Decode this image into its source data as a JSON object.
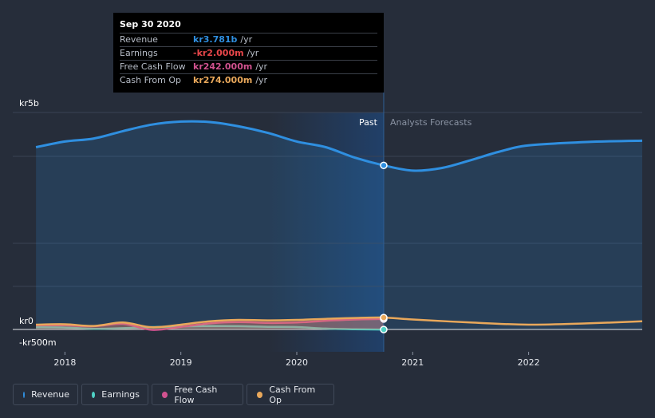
{
  "chart_data": {
    "type": "area",
    "currency": "kr",
    "y_ticks": [
      {
        "value": 5000,
        "label": "kr5b"
      },
      {
        "value": 0,
        "label": "kr0"
      },
      {
        "value": -500,
        "label": "-kr500m"
      }
    ],
    "x_ticks": [
      {
        "value": 2018,
        "label": "2018"
      },
      {
        "value": 2019,
        "label": "2019"
      },
      {
        "value": 2020,
        "label": "2020"
      },
      {
        "value": 2021,
        "label": "2021"
      },
      {
        "value": 2022,
        "label": "2022"
      }
    ],
    "ylim": [
      -500,
      5000
    ],
    "xlim": [
      2017.55,
      2022.98
    ],
    "past_end": 2020.75,
    "past_label": "Past",
    "forecast_label": "Analysts Forecasts",
    "series": [
      {
        "name": "Revenue",
        "color": "#2f8fe0",
        "values": [
          [
            2017.75,
            4200
          ],
          [
            2018.0,
            4330
          ],
          [
            2018.25,
            4400
          ],
          [
            2018.5,
            4570
          ],
          [
            2018.75,
            4720
          ],
          [
            2019.0,
            4790
          ],
          [
            2019.25,
            4780
          ],
          [
            2019.5,
            4680
          ],
          [
            2019.75,
            4530
          ],
          [
            2020.0,
            4330
          ],
          [
            2020.25,
            4200
          ],
          [
            2020.5,
            3960
          ],
          [
            2020.75,
            3781
          ],
          [
            2021.0,
            3660
          ],
          [
            2021.25,
            3720
          ],
          [
            2021.5,
            3900
          ],
          [
            2021.75,
            4100
          ],
          [
            2022.0,
            4240
          ],
          [
            2022.5,
            4320
          ],
          [
            2022.98,
            4350
          ]
        ]
      },
      {
        "name": "Earnings",
        "color": "#4fd1c5",
        "values": [
          [
            2017.75,
            50
          ],
          [
            2018.0,
            45
          ],
          [
            2018.25,
            15
          ],
          [
            2018.5,
            30
          ],
          [
            2018.75,
            55
          ],
          [
            2019.0,
            70
          ],
          [
            2019.25,
            80
          ],
          [
            2019.5,
            75
          ],
          [
            2019.75,
            60
          ],
          [
            2020.0,
            55
          ],
          [
            2020.25,
            20
          ],
          [
            2020.5,
            5
          ],
          [
            2020.75,
            -2
          ]
        ]
      },
      {
        "name": "Free Cash Flow",
        "color": "#d1528f",
        "values": [
          [
            2017.75,
            100
          ],
          [
            2018.0,
            95
          ],
          [
            2018.25,
            75
          ],
          [
            2018.5,
            130
          ],
          [
            2018.75,
            -10
          ],
          [
            2019.0,
            60
          ],
          [
            2019.25,
            140
          ],
          [
            2019.5,
            170
          ],
          [
            2019.75,
            150
          ],
          [
            2020.0,
            160
          ],
          [
            2020.25,
            200
          ],
          [
            2020.5,
            230
          ],
          [
            2020.75,
            242
          ]
        ]
      },
      {
        "name": "Cash From Op",
        "color": "#e9a85b",
        "values": [
          [
            2017.75,
            110
          ],
          [
            2018.0,
            120
          ],
          [
            2018.25,
            80
          ],
          [
            2018.5,
            160
          ],
          [
            2018.75,
            50
          ],
          [
            2019.0,
            110
          ],
          [
            2019.25,
            190
          ],
          [
            2019.5,
            220
          ],
          [
            2019.75,
            210
          ],
          [
            2020.0,
            220
          ],
          [
            2020.25,
            245
          ],
          [
            2020.5,
            265
          ],
          [
            2020.75,
            274
          ],
          [
            2021.0,
            230
          ],
          [
            2021.5,
            160
          ],
          [
            2022.0,
            110
          ],
          [
            2022.5,
            140
          ],
          [
            2022.98,
            190
          ]
        ]
      }
    ]
  },
  "tooltip": {
    "date": "Sep 30 2020",
    "rows": [
      {
        "name": "Revenue",
        "value": "kr3.781b",
        "unit": "/yr",
        "color": "#2f8fe0"
      },
      {
        "name": "Earnings",
        "value": "-kr2.000m",
        "unit": "/yr",
        "color": "#e8464a"
      },
      {
        "name": "Free Cash Flow",
        "value": "kr242.000m",
        "unit": "/yr",
        "color": "#d1528f"
      },
      {
        "name": "Cash From Op",
        "value": "kr274.000m",
        "unit": "/yr",
        "color": "#e9a85b"
      }
    ]
  },
  "legend": [
    {
      "label": "Revenue",
      "color": "#2f8fe0"
    },
    {
      "label": "Earnings",
      "color": "#4fd1c5"
    },
    {
      "label": "Free Cash Flow",
      "color": "#d1528f"
    },
    {
      "label": "Cash From Op",
      "color": "#e9a85b"
    }
  ]
}
